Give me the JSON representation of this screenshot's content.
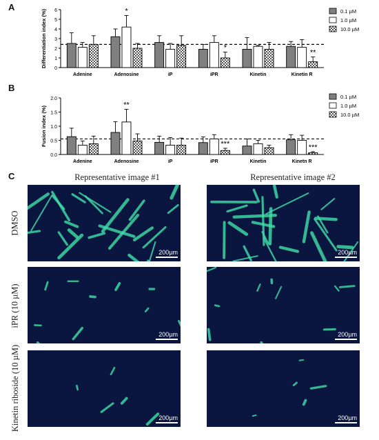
{
  "panels": {
    "a_label": "A",
    "b_label": "B",
    "c_label": "C"
  },
  "legend": {
    "items": [
      "0.1 µM",
      "1.0 µM",
      "10.0 µM"
    ],
    "colors": [
      "#7f7f7f",
      "#ffffff",
      "checker"
    ]
  },
  "chart_data": [
    {
      "type": "bar",
      "ylabel": "Differentiation index (%)",
      "ylim": [
        0,
        6
      ],
      "yticks": [
        "0",
        "1",
        "2",
        "3",
        "4",
        "5",
        "6"
      ],
      "categories": [
        "Adenine",
        "Adenosine",
        "iP",
        "iPR",
        "Kinetin",
        "Kinetin R"
      ],
      "reference_line": 2.4,
      "series": [
        {
          "name": "0.1 µM",
          "values": [
            2.5,
            3.2,
            2.6,
            1.9,
            1.9,
            2.2
          ],
          "errors": [
            1.1,
            0.8,
            0.7,
            0.5,
            1.2,
            0.5
          ]
        },
        {
          "name": "1.0 µM",
          "values": [
            2.1,
            4.2,
            1.9,
            2.6,
            2.2,
            2.1
          ],
          "errors": [
            0.5,
            1.2,
            0.6,
            0.7,
            0.1,
            0.8
          ]
        },
        {
          "name": "10.0 µM",
          "values": [
            2.4,
            2.0,
            2.3,
            1.0,
            1.9,
            0.6
          ],
          "errors": [
            0.9,
            0.5,
            1.0,
            0.6,
            0.7,
            0.5
          ]
        }
      ],
      "annotations": [
        {
          "category": "Adenosine",
          "series": "1.0 µM",
          "text": "*"
        },
        {
          "category": "iPR",
          "series": "10.0 µM",
          "text": "*"
        },
        {
          "category": "Kinetin R",
          "series": "10.0 µM",
          "text": "**"
        }
      ]
    },
    {
      "type": "bar",
      "ylabel": "Fusion index (%)",
      "ylim": [
        0,
        2.0
      ],
      "yticks": [
        "0.0",
        "0.5",
        "1.0",
        "1.5",
        "2.0"
      ],
      "categories": [
        "Adenine",
        "Adenosine",
        "iP",
        "iPR",
        "Kinetin",
        "Kinetn R"
      ],
      "reference_line": 0.55,
      "series": [
        {
          "name": "0.1 µM",
          "values": [
            0.63,
            0.78,
            0.43,
            0.42,
            0.3,
            0.52
          ],
          "errors": [
            0.3,
            0.38,
            0.22,
            0.2,
            0.25,
            0.18
          ]
        },
        {
          "name": "1.0 µM",
          "values": [
            0.33,
            1.15,
            0.33,
            0.55,
            0.38,
            0.5
          ],
          "errors": [
            0.15,
            0.45,
            0.27,
            0.15,
            0.12,
            0.18
          ]
        },
        {
          "name": "10.0 µM",
          "values": [
            0.38,
            0.48,
            0.33,
            0.14,
            0.24,
            0.06
          ],
          "errors": [
            0.27,
            0.25,
            0.25,
            0.08,
            0.09,
            0.04
          ]
        }
      ],
      "annotations": [
        {
          "category": "Adenosine",
          "series": "1.0 µM",
          "text": "**"
        },
        {
          "category": "iPR",
          "series": "10.0 µM",
          "text": "***"
        },
        {
          "category": "Kinetn R",
          "series": "10.0 µM",
          "text": "***"
        }
      ]
    }
  ],
  "images": {
    "col_headers": [
      "Representative image #1",
      "Representative image #2"
    ],
    "row_headers": [
      "DMSO",
      "iPR (10 µM)",
      "Kinetin riboside (10 µM)"
    ],
    "scale_bar": "200µm",
    "background_color": "#0b1640",
    "nuclei_color": "#1e3aa0",
    "cell_color": "#3fe0a8"
  }
}
